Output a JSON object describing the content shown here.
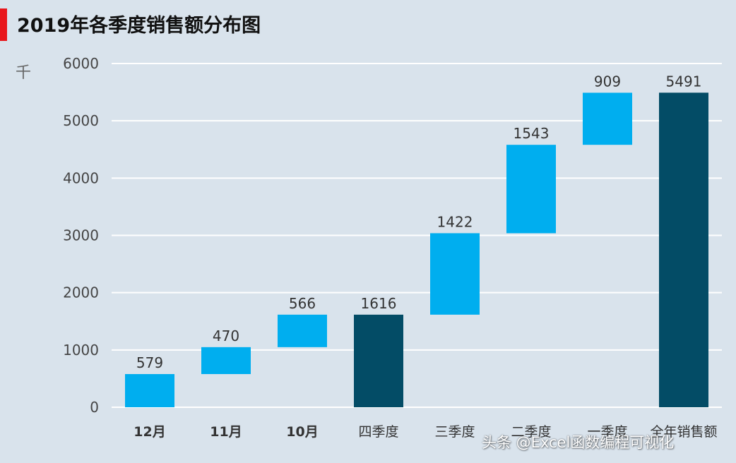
{
  "chart_data": {
    "type": "bar",
    "subtype": "waterfall",
    "title": "2019年各季度销售额分布图",
    "ylabel": "千",
    "ylim": [
      0,
      6000
    ],
    "yticks": [
      0,
      1000,
      2000,
      3000,
      4000,
      5000,
      6000
    ],
    "grid": true,
    "categories": [
      "12月",
      "11月",
      "10月",
      "四季度",
      "三季度",
      "二季度",
      "一季度",
      "全年销售额"
    ],
    "bars": [
      {
        "label": "12月",
        "start": 0,
        "end": 579,
        "value": 579,
        "kind": "step"
      },
      {
        "label": "11月",
        "start": 579,
        "end": 1049,
        "value": 470,
        "kind": "step"
      },
      {
        "label": "10月",
        "start": 1049,
        "end": 1616,
        "value": 566,
        "kind": "step"
      },
      {
        "label": "四季度",
        "start": 0,
        "end": 1616,
        "value": 1616,
        "kind": "total"
      },
      {
        "label": "三季度",
        "start": 1616,
        "end": 3038,
        "value": 1422,
        "kind": "step"
      },
      {
        "label": "二季度",
        "start": 3038,
        "end": 4581,
        "value": 1543,
        "kind": "step"
      },
      {
        "label": "一季度",
        "start": 4581,
        "end": 5490,
        "value": 909,
        "kind": "step"
      },
      {
        "label": "全年销售额",
        "start": 0,
        "end": 5491,
        "value": 5491,
        "kind": "total"
      }
    ]
  },
  "colors": {
    "background": "#d9e3ec",
    "step_bar": "#00aeef",
    "total_bar": "#034c66",
    "accent": "#e8161b",
    "gridline": "#ffffff"
  },
  "watermark": "头条 @Excel函数编程可视化"
}
